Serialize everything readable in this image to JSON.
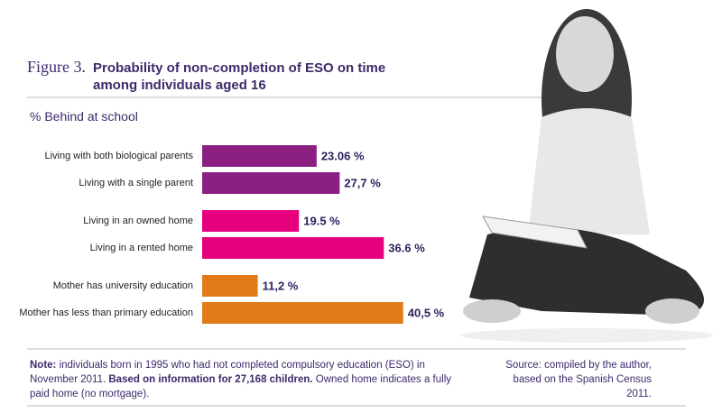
{
  "chart_data": {
    "type": "hbar",
    "figure_label": "Figure 3.",
    "title": "Probability of non-completion of ESO on time among individuals aged 16",
    "subtitle": "% Behind at school",
    "categories": [
      "Living with both biological parents",
      "Living with a single parent",
      "Living in an owned home",
      "Living in a rented home",
      "Mother has university education",
      "Mother has less than primary education"
    ],
    "values": [
      23.06,
      27.7,
      19.5,
      36.6,
      11.2,
      40.5
    ],
    "value_labels": [
      "23.06 %",
      "27,7 %",
      "19.5 %",
      "36.6 %",
      "11,2 %",
      "40,5 %"
    ],
    "colors": [
      "#8b1f82",
      "#8b1f82",
      "#e6007e",
      "#e6007e",
      "#e07b17",
      "#e07b17"
    ],
    "note": {
      "bold_1": "Note:",
      "text_1": " individuals born in 1995 who had not completed compulsory education (ESO) in November 2011. ",
      "bold_2": "Based on information for 27,168 children.",
      "text_2": " Owned home indicates a fully paid home (no mortgage)."
    },
    "source": "Source: compiled by the author, based on the Spanish Census 2011."
  }
}
